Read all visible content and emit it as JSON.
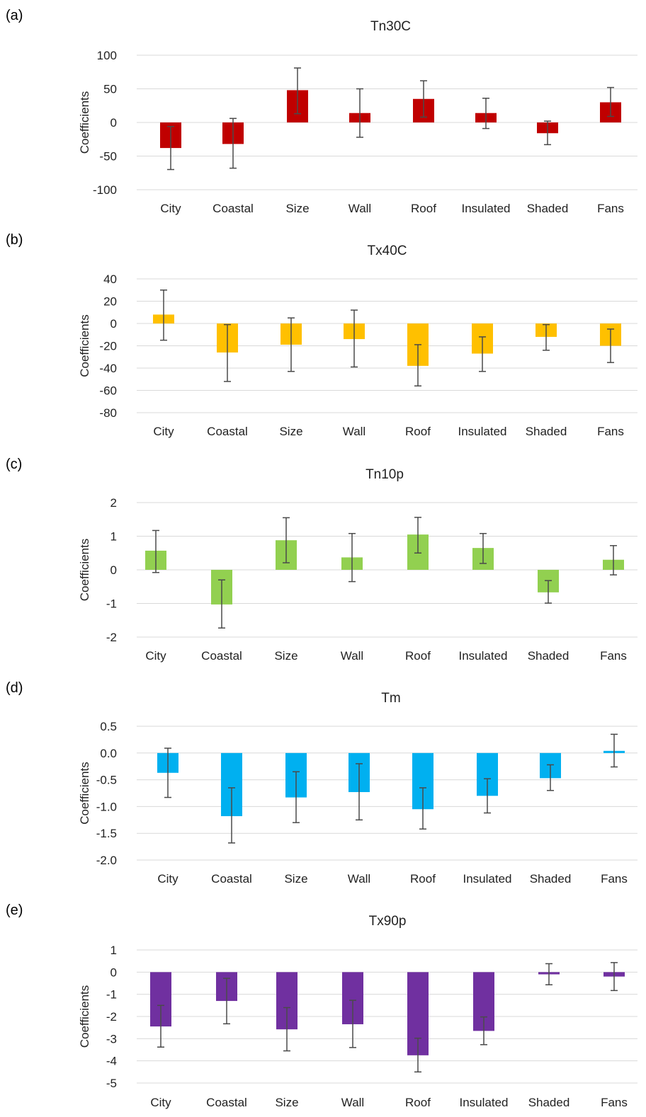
{
  "chart_data": [
    {
      "panel_label": "(a)",
      "type": "bar",
      "title": "Tn30C",
      "xlabel": "",
      "ylabel": "Coefficients",
      "color": "#c00000",
      "ylim": [
        -100,
        100
      ],
      "yticks": [
        100,
        50,
        0,
        -50,
        -100
      ],
      "ytick_labels": [
        "100",
        "50",
        "0",
        "-50",
        "-100"
      ],
      "categories": [
        "City",
        "Coastal",
        "Size",
        "Wall",
        "Roof",
        "Insulated",
        "Shaded",
        "Fans"
      ],
      "values": [
        -38,
        -32,
        48,
        14,
        35,
        14,
        -16,
        30
      ],
      "error_low": [
        -70,
        -68,
        13,
        -22,
        8,
        -9,
        -33,
        9
      ],
      "error_high": [
        -6,
        6,
        81,
        50,
        62,
        36,
        2,
        52
      ],
      "grid": true
    },
    {
      "panel_label": "(b)",
      "type": "bar",
      "title": "Tx40C",
      "xlabel": "",
      "ylabel": "Coefficients",
      "color": "#ffc000",
      "ylim": [
        -80,
        40
      ],
      "yticks": [
        40,
        20,
        0,
        -20,
        -40,
        -60,
        -80
      ],
      "ytick_labels": [
        "40",
        "20",
        "0",
        "-20",
        "-40",
        "-60",
        "-80"
      ],
      "categories": [
        "City",
        "Coastal",
        "Size",
        "Wall",
        "Roof",
        "Insulated",
        "Shaded",
        "Fans"
      ],
      "values": [
        8,
        -26,
        -19,
        -14,
        -38,
        -27,
        -12,
        -20
      ],
      "error_low": [
        -15,
        -52,
        -43,
        -39,
        -56,
        -43,
        -24,
        -35
      ],
      "error_high": [
        30,
        -1,
        5,
        12,
        -19,
        -12,
        -1,
        -5
      ],
      "grid": true
    },
    {
      "panel_label": "(c)",
      "type": "bar",
      "title": "Tn10p",
      "xlabel": "",
      "ylabel": "Coefficients",
      "color": "#92d050",
      "ylim": [
        -2,
        2
      ],
      "yticks": [
        2,
        1,
        0,
        -1,
        -2
      ],
      "ytick_labels": [
        "2",
        "1",
        "0",
        "-1",
        "-2"
      ],
      "categories": [
        "City",
        "Coastal",
        "Size",
        "Wall",
        "Roof",
        "Insulated",
        "Shaded",
        "Fans"
      ],
      "values": [
        0.57,
        -1.03,
        0.88,
        0.37,
        1.05,
        0.65,
        -0.67,
        0.3
      ],
      "error_low": [
        -0.08,
        -1.73,
        0.21,
        -0.35,
        0.5,
        0.19,
        -0.99,
        -0.15
      ],
      "error_high": [
        1.17,
        -0.3,
        1.55,
        1.08,
        1.56,
        1.08,
        -0.32,
        0.72
      ],
      "grid": true
    },
    {
      "panel_label": "(d)",
      "type": "bar",
      "title": "Tm",
      "xlabel": "",
      "ylabel": "Coefficients",
      "color": "#00b0f0",
      "ylim": [
        -2.0,
        0.5
      ],
      "yticks": [
        0.5,
        0.0,
        -0.5,
        -1.0,
        -1.5,
        -2.0
      ],
      "ytick_labels": [
        "0.5",
        "0.0",
        "-0.5",
        "-1.0",
        "-1.5",
        "-2.0"
      ],
      "categories": [
        "City",
        "Coastal",
        "Size",
        "Wall",
        "Roof",
        "Insulated",
        "Shaded",
        "Fans"
      ],
      "values": [
        -0.37,
        -1.18,
        -0.83,
        -0.73,
        -1.05,
        -0.8,
        -0.47,
        0.04
      ],
      "error_low": [
        -0.83,
        -1.68,
        -1.3,
        -1.25,
        -1.42,
        -1.12,
        -0.7,
        -0.26
      ],
      "error_high": [
        0.09,
        -0.65,
        -0.35,
        -0.2,
        -0.65,
        -0.48,
        -0.22,
        0.35
      ],
      "grid": true
    },
    {
      "panel_label": "(e)",
      "type": "bar",
      "title": "Tx90p",
      "xlabel": "",
      "ylabel": "Coefficients",
      "color": "#7030a0",
      "ylim": [
        -5,
        1
      ],
      "yticks": [
        1,
        0,
        -1,
        -2,
        -3,
        -4,
        -5
      ],
      "ytick_labels": [
        "1",
        "0",
        "-1",
        "-2",
        "-3",
        "-4",
        "-5"
      ],
      "categories": [
        "City",
        "Coastal",
        "Size",
        "Wall",
        "Roof",
        "Insulated",
        "Shaded",
        "Fans"
      ],
      "values": [
        -2.45,
        -1.3,
        -2.58,
        -2.35,
        -3.75,
        -2.65,
        -0.1,
        -0.2
      ],
      "error_low": [
        -3.38,
        -2.33,
        -3.55,
        -3.4,
        -4.5,
        -3.27,
        -0.57,
        -0.83
      ],
      "error_high": [
        -1.5,
        -0.28,
        -1.6,
        -1.27,
        -2.98,
        -2.02,
        0.38,
        0.43
      ],
      "grid": true
    }
  ]
}
